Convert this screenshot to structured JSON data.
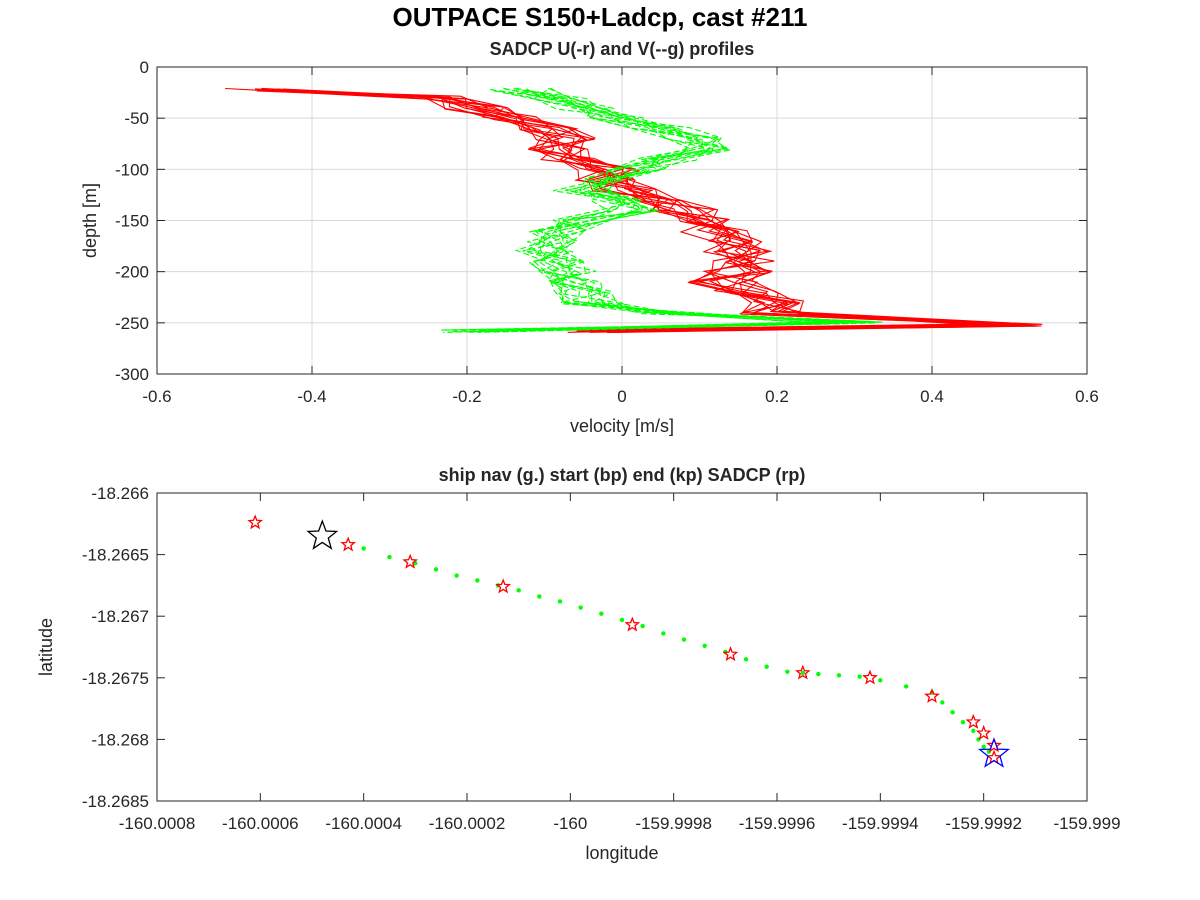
{
  "figure_title": "OUTPACE S150+Ladcp, cast #211",
  "colors": {
    "u_series": "#ff0000",
    "v_series": "#00ff00",
    "ship_nav": "#00ff00",
    "start_marker": "#000000",
    "end_marker": "#0000ff",
    "sadcp_marker": "#ff0000",
    "grid": "#d9d9d9"
  },
  "chart_data": [
    {
      "type": "line",
      "title": "SADCP U(-r) and V(--g) profiles",
      "xlabel": "velocity [m/s]",
      "ylabel": "depth [m]",
      "xlim": [
        -0.6,
        0.6
      ],
      "ylim": [
        -300,
        0
      ],
      "xticks": [
        "-0.6",
        "-0.4",
        "-0.2",
        "0",
        "0.2",
        "0.4",
        "0.6"
      ],
      "yticks": [
        "0",
        "-50",
        "-100",
        "-150",
        "-200",
        "-250",
        "-300"
      ],
      "grid": true,
      "series_mean": [
        {
          "name": "U",
          "style": "solid",
          "color": "#ff0000",
          "depth": [
            -22,
            -30,
            -40,
            -50,
            -60,
            -70,
            -80,
            -90,
            -100,
            -110,
            -120,
            -130,
            -140,
            -150,
            -160,
            -170,
            -180,
            -190,
            -200,
            -210,
            -220,
            -230,
            -240,
            -252,
            -258
          ],
          "values": [
            -0.48,
            -0.22,
            -0.19,
            -0.15,
            -0.1,
            -0.07,
            -0.08,
            -0.06,
            -0.02,
            -0.02,
            0.0,
            0.05,
            0.08,
            0.1,
            0.12,
            0.14,
            0.15,
            0.16,
            0.15,
            0.13,
            0.16,
            0.19,
            0.19,
            0.5,
            -0.05
          ]
        },
        {
          "name": "V",
          "style": "dashed",
          "color": "#00ff00",
          "depth": [
            -22,
            -30,
            -40,
            -50,
            -60,
            -70,
            -80,
            -90,
            -100,
            -110,
            -120,
            -130,
            -140,
            -150,
            -160,
            -170,
            -180,
            -190,
            -200,
            -210,
            -220,
            -230,
            -240,
            -250,
            -258
          ],
          "values": [
            -0.13,
            -0.08,
            -0.05,
            -0.01,
            0.05,
            0.09,
            0.1,
            0.06,
            0.02,
            -0.02,
            -0.05,
            0.0,
            0.01,
            -0.05,
            -0.08,
            -0.09,
            -0.1,
            -0.08,
            -0.07,
            -0.06,
            -0.05,
            -0.04,
            0.05,
            0.3,
            -0.2
          ]
        }
      ]
    },
    {
      "type": "scatter",
      "title": "ship nav (g.) start (bp) end (kp) SADCP (rp)",
      "xlabel": "longitude",
      "ylabel": "latitude",
      "xlim": [
        -160.0008,
        -159.999
      ],
      "ylim": [
        -18.2685,
        -18.266
      ],
      "xticks": [
        "-160.0008",
        "-160.0006",
        "-160.0004",
        "-160.0002",
        "-160",
        "-159.9998",
        "-159.9996",
        "-159.9994",
        "-159.9992",
        "-159.999"
      ],
      "yticks": [
        "-18.266",
        "-18.2665",
        "-18.267",
        "-18.2675",
        "-18.268",
        "-18.2685"
      ],
      "grid": false,
      "ship_nav": {
        "lon": [
          -160.0004,
          -160.00035,
          -160.0003,
          -160.00026,
          -160.00022,
          -160.00018,
          -160.00014,
          -160.0001,
          -160.00006,
          -160.00002,
          -159.99998,
          -159.99994,
          -159.9999,
          -159.99986,
          -159.99982,
          -159.99978,
          -159.99974,
          -159.9997,
          -159.99966,
          -159.99962,
          -159.99958,
          -159.99955,
          -159.99952,
          -159.99948,
          -159.99944,
          -159.9994,
          -159.99935,
          -159.9993,
          -159.99928,
          -159.99926,
          -159.99924,
          -159.99922,
          -159.99921,
          -159.9992,
          -159.99919
        ],
        "lat": [
          -18.26645,
          -18.26652,
          -18.26657,
          -18.26662,
          -18.26667,
          -18.26671,
          -18.26675,
          -18.26679,
          -18.26684,
          -18.26688,
          -18.26693,
          -18.26698,
          -18.26703,
          -18.26708,
          -18.26714,
          -18.26719,
          -18.26724,
          -18.26729,
          -18.26735,
          -18.26741,
          -18.26745,
          -18.26746,
          -18.26747,
          -18.26748,
          -18.26749,
          -18.26752,
          -18.26757,
          -18.26762,
          -18.2677,
          -18.26778,
          -18.26786,
          -18.26793,
          -18.268,
          -18.26806,
          -18.2681
        ]
      },
      "start_point": {
        "lon": -160.00048,
        "lat": -18.26635
      },
      "end_point": {
        "lon": -159.99918,
        "lat": -18.26812
      },
      "sadcp_points": {
        "lon": [
          -160.00061,
          -160.00043,
          -160.00031,
          -160.00013,
          -159.99988,
          -159.99969,
          -159.99955,
          -159.99942,
          -159.9993,
          -159.99922,
          -159.9992,
          -159.99918,
          -159.99918
        ],
        "lat": [
          -18.26624,
          -18.26642,
          -18.26656,
          -18.26676,
          -18.26707,
          -18.26731,
          -18.26746,
          -18.2675,
          -18.26765,
          -18.26786,
          -18.26795,
          -18.26805,
          -18.26815
        ]
      }
    }
  ]
}
